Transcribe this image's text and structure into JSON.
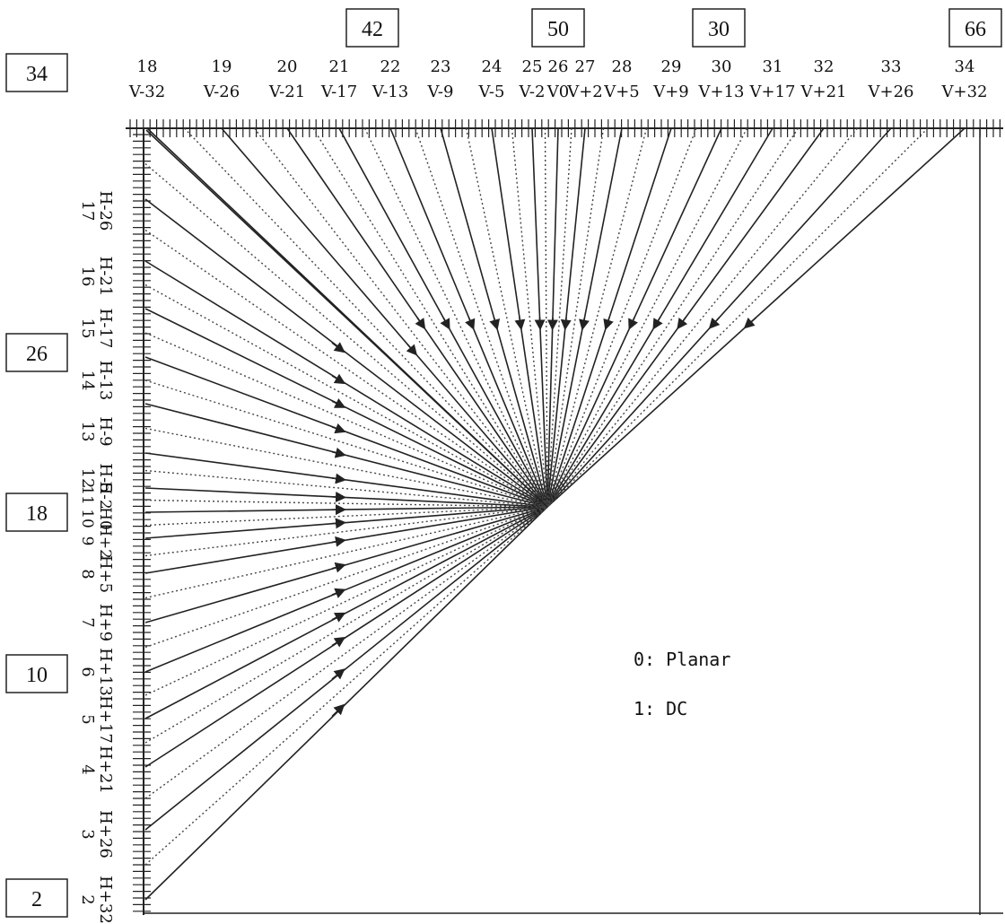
{
  "top_modes": [
    {
      "num": "18",
      "angle": "V-32"
    },
    {
      "num": "19",
      "angle": "V-26"
    },
    {
      "num": "20",
      "angle": "V-21"
    },
    {
      "num": "21",
      "angle": "V-17"
    },
    {
      "num": "22",
      "angle": "V-13"
    },
    {
      "num": "23",
      "angle": "V-9"
    },
    {
      "num": "24",
      "angle": "V-5"
    },
    {
      "num": "25",
      "angle": "V-2"
    },
    {
      "num": "26",
      "angle": "V0"
    },
    {
      "num": "27",
      "angle": "V+2"
    },
    {
      "num": "28",
      "angle": "V+5"
    },
    {
      "num": "29",
      "angle": "V+9"
    },
    {
      "num": "30",
      "angle": "V+13"
    },
    {
      "num": "31",
      "angle": "V+17"
    },
    {
      "num": "32",
      "angle": "V+21"
    },
    {
      "num": "33",
      "angle": "V+26"
    },
    {
      "num": "34",
      "angle": "V+32"
    }
  ],
  "left_modes": [
    {
      "num": "17",
      "angle": "H-26"
    },
    {
      "num": "16",
      "angle": "H-21"
    },
    {
      "num": "15",
      "angle": "H-17"
    },
    {
      "num": "14",
      "angle": "H-13"
    },
    {
      "num": "13",
      "angle": "H-9"
    },
    {
      "num": "12",
      "angle": "H-5"
    },
    {
      "num": "11",
      "angle": "H-2"
    },
    {
      "num": "10",
      "angle": "H0"
    },
    {
      "num": "9",
      "angle": "H+2"
    },
    {
      "num": "8",
      "angle": "H+5"
    },
    {
      "num": "7",
      "angle": "H+9"
    },
    {
      "num": "6",
      "angle": "H+13"
    },
    {
      "num": "5",
      "angle": "H+17"
    },
    {
      "num": "4",
      "angle": "H+21"
    },
    {
      "num": "3",
      "angle": "H+26"
    },
    {
      "num": "2",
      "angle": "H+32"
    }
  ],
  "boxes_top": [
    "42",
    "50",
    "30",
    "66"
  ],
  "boxes_left": [
    "34",
    "26",
    "18",
    "10",
    "2"
  ],
  "legend": [
    "0: Planar",
    "1: DC"
  ]
}
